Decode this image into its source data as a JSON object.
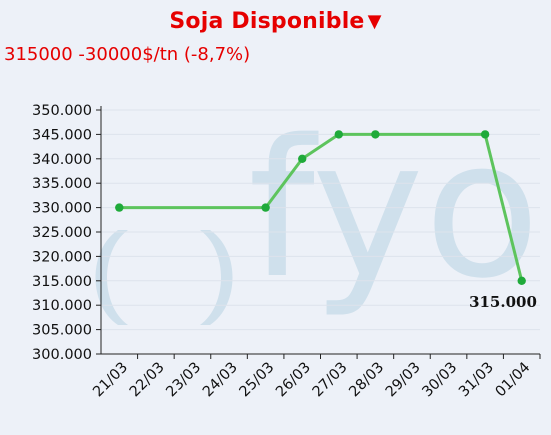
{
  "header": {
    "title": "Soja Disponible",
    "trend_icon": "triangle-down-icon",
    "trend_symbol": "▼",
    "change_text": "315000 -30000$/tn (-8,7%)",
    "accent_color": "#e60000"
  },
  "watermark": {
    "text": "fyo"
  },
  "chart_data": {
    "type": "line",
    "title": "Soja Disponible",
    "xlabel": "",
    "ylabel": "",
    "categories": [
      "21/03",
      "22/03",
      "23/03",
      "24/03",
      "25/03",
      "26/03",
      "27/03",
      "28/03",
      "29/03",
      "30/03",
      "31/03",
      "01/04"
    ],
    "series": [
      {
        "color": "#5dc45d",
        "points": [
          {
            "x": "21/03",
            "y": 330000
          },
          {
            "x": "25/03",
            "y": 330000
          },
          {
            "x": "26/03",
            "y": 340000
          },
          {
            "x": "27/03",
            "y": 345000
          },
          {
            "x": "28/03",
            "y": 345000
          },
          {
            "x": "31/03",
            "y": 345000
          },
          {
            "x": "01/04",
            "y": 315000
          }
        ]
      }
    ],
    "ylim": [
      300000,
      350000
    ],
    "yticks": [
      "300.000",
      "305.000",
      "310.000",
      "315.000",
      "320.000",
      "325.000",
      "330.000",
      "335.000",
      "340.000",
      "345.000",
      "350.000"
    ],
    "grid": true,
    "last_point_label": "315.000",
    "point_color": "#1faa3a"
  }
}
